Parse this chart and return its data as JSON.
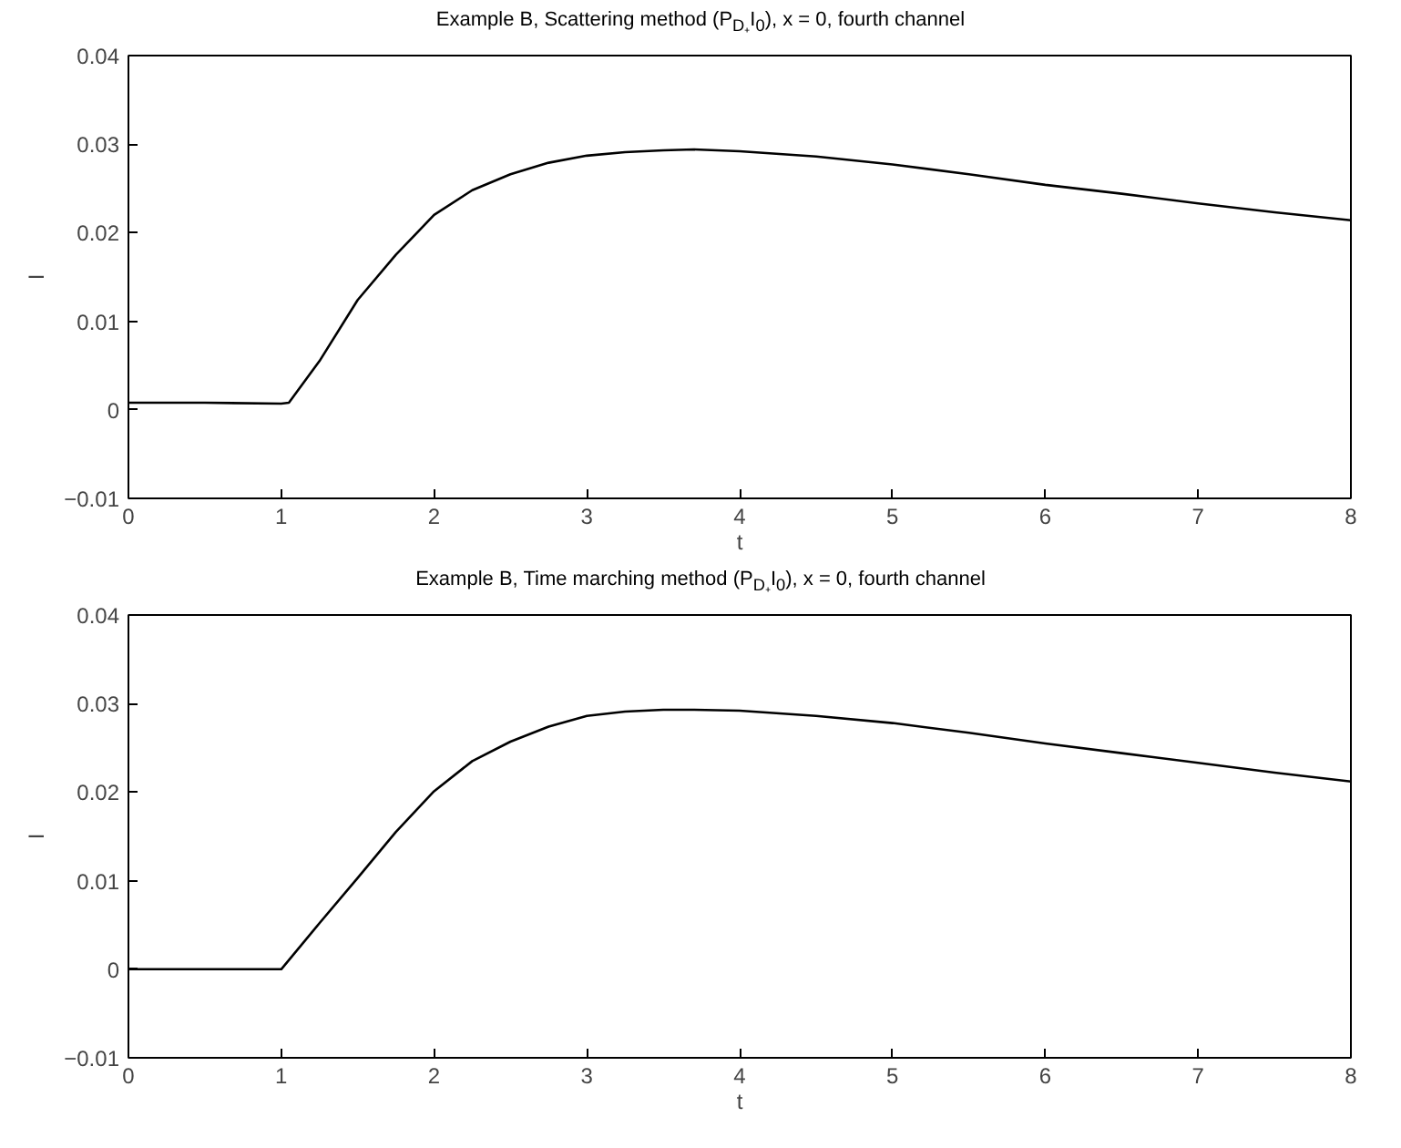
{
  "chart_data": [
    {
      "type": "line",
      "title": "Example B, Scattering method (P$_{D₊}$I$_{0}$), x = 0, fourth channel",
      "xlabel": "t",
      "ylabel": "I",
      "xlim": [
        0,
        8
      ],
      "ylim": [
        -0.01,
        0.04
      ],
      "xticks": [
        0,
        1,
        2,
        3,
        4,
        5,
        6,
        7,
        8
      ],
      "yticks": [
        {
          "value": -0.01,
          "label": "−0.01"
        },
        0,
        0.01,
        0.02,
        0.03,
        0.04
      ],
      "series": [
        {
          "color": "#000000",
          "x": [
            0,
            0.5,
            1.0,
            1.05,
            1.25,
            1.5,
            1.75,
            2,
            2.25,
            2.5,
            2.75,
            3,
            3.25,
            3.5,
            3.7,
            4,
            4.5,
            5,
            5.5,
            6,
            6.5,
            7,
            7.5,
            8
          ],
          "values": [
            0.0008,
            0.0008,
            0.0007,
            0.0008,
            0.0055,
            0.0124,
            0.0175,
            0.022,
            0.0248,
            0.0266,
            0.0279,
            0.0287,
            0.0291,
            0.0293,
            0.0294,
            0.0292,
            0.0286,
            0.0277,
            0.0266,
            0.0254,
            0.0244,
            0.0233,
            0.0223,
            0.0214
          ]
        }
      ]
    },
    {
      "type": "line",
      "title": "Example B, Time marching method (P$_{D₊}$I$_{0}$), x = 0, fourth channel",
      "xlabel": "t",
      "ylabel": "I",
      "xlim": [
        0,
        8
      ],
      "ylim": [
        -0.01,
        0.04
      ],
      "xticks": [
        0,
        1,
        2,
        3,
        4,
        5,
        6,
        7,
        8
      ],
      "yticks": [
        {
          "value": -0.01,
          "label": "−0.01"
        },
        0,
        0.01,
        0.02,
        0.03,
        0.04
      ],
      "series": [
        {
          "color": "#000000",
          "x": [
            0,
            0.5,
            1.0,
            1.25,
            1.5,
            1.75,
            2,
            2.25,
            2.5,
            2.75,
            3,
            3.25,
            3.5,
            3.7,
            4,
            4.5,
            5,
            5.5,
            6,
            6.5,
            7,
            7.5,
            8
          ],
          "values": [
            0,
            0,
            0,
            0.0052,
            0.0103,
            0.0155,
            0.0201,
            0.0235,
            0.0257,
            0.0274,
            0.0286,
            0.0291,
            0.0293,
            0.0293,
            0.0292,
            0.0286,
            0.0278,
            0.0267,
            0.0255,
            0.0244,
            0.0233,
            0.0222,
            0.0212
          ]
        }
      ]
    }
  ]
}
